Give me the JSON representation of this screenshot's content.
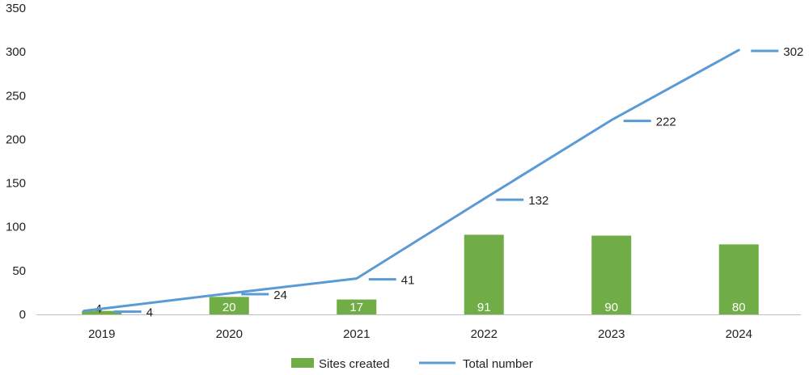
{
  "chart_data": {
    "type": "bar",
    "categories": [
      "2019",
      "2020",
      "2021",
      "2022",
      "2023",
      "2024"
    ],
    "series": [
      {
        "name": "Sites created",
        "type": "bar",
        "color": "#70ad47",
        "values": [
          4,
          20,
          17,
          91,
          90,
          80
        ]
      },
      {
        "name": "Total number",
        "type": "line",
        "color": "#5b9bd5",
        "values": [
          4,
          24,
          41,
          132,
          222,
          302
        ]
      }
    ],
    "ylim": [
      0,
      350
    ],
    "yticks": [
      0,
      50,
      100,
      150,
      200,
      250,
      300,
      350
    ],
    "grid": false,
    "legend": "bottom-center",
    "title": "",
    "xlabel": "",
    "ylabel": ""
  }
}
